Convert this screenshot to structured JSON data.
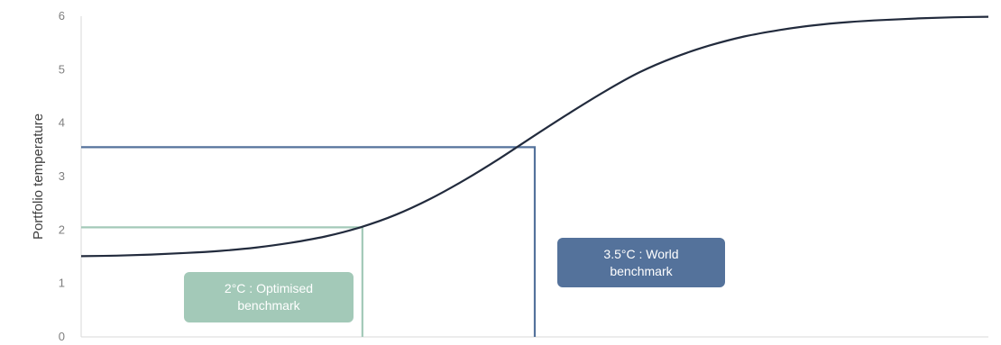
{
  "chart_data": {
    "type": "line",
    "title": "",
    "xlabel": "",
    "ylabel": "Portfolio temperature",
    "ylim": [
      0,
      6
    ],
    "y_ticks": [
      "0",
      "1",
      "2",
      "3",
      "4",
      "5",
      "6"
    ],
    "grid": false,
    "legend": "none",
    "series": [
      {
        "values": [
          1.51,
          1.52,
          1.54,
          1.57,
          1.61,
          1.67,
          1.76,
          1.88,
          2.05,
          2.28,
          2.58,
          2.94,
          3.34,
          3.77,
          4.19,
          4.59,
          4.95,
          5.23,
          5.45,
          5.62,
          5.74,
          5.83,
          5.89,
          5.93,
          5.96,
          5.98,
          5.99
        ]
      }
    ],
    "reference_lines": [
      {
        "level": 2.05,
        "x_fraction": 0.31,
        "color": "#a3c9b8"
      },
      {
        "level": 3.55,
        "x_fraction": 0.5,
        "color": "#54729b"
      }
    ],
    "annotations": [
      {
        "line1": "2°C : Optimised",
        "line2": "benchmark",
        "color": "#a3c9b8"
      },
      {
        "line1": "3.5°C : World",
        "line2": "benchmark",
        "color": "#54729b"
      }
    ],
    "colors": {
      "curve": "#222b3d",
      "axis": "#d9d9d9"
    }
  }
}
